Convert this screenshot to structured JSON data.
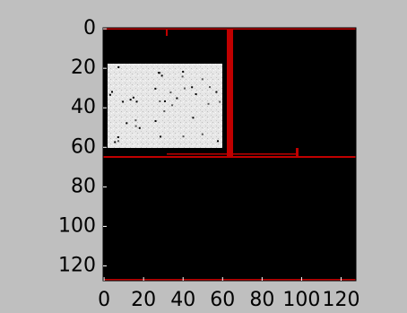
{
  "chart_data": {
    "type": "image",
    "xlim": [
      -0.5,
      127.5
    ],
    "ylim": [
      127.5,
      -0.5
    ],
    "xticks": [
      0,
      20,
      40,
      60,
      80,
      100,
      120
    ],
    "yticks": [
      0,
      20,
      40,
      60,
      80,
      100,
      120
    ]
  }
}
